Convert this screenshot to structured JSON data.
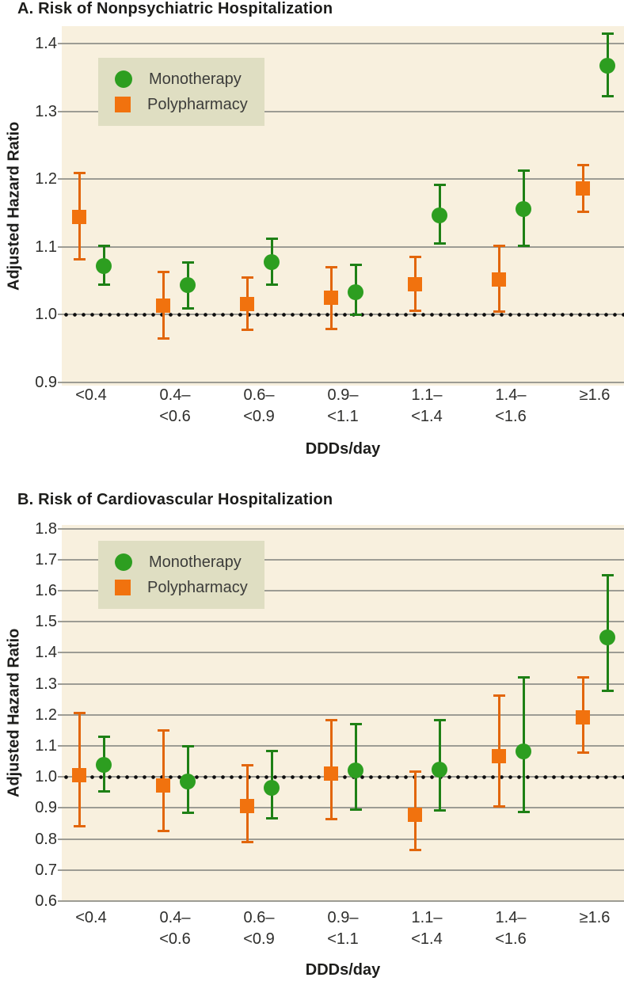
{
  "colors": {
    "monotherapy": "#2d9e20",
    "monotherapy_line": "#1e8015",
    "polypharmacy": "#f1720e",
    "polypharmacy_line": "#e2660b",
    "plot_background": "#f8f0de",
    "legend_background": "#dfdec2",
    "gridline": "#9d9c94",
    "reference_dots": "#0e0e0e",
    "title_text": "#1d1d1b",
    "tick_text": "#2e2e2c",
    "legend_text": "#3c3c3a"
  },
  "chart_data": [
    {
      "type": "scatter",
      "panel": "A",
      "title": "A. Risk of Nonpsychiatric Hospitalization",
      "xlabel": "DDDs/day",
      "ylabel": "Adjusted Hazard Ratio",
      "categories": [
        [
          "<0.4"
        ],
        [
          "0.4–",
          "<0.6"
        ],
        [
          "0.6–",
          "<0.9"
        ],
        [
          "0.9–",
          "<1.1"
        ],
        [
          "1.1–",
          "<1.4"
        ],
        [
          "1.4–",
          "<1.6"
        ],
        [
          "≥1.6"
        ]
      ],
      "ylim": [
        0.895,
        1.426
      ],
      "yticks": [
        0.9,
        1.0,
        1.1,
        1.2,
        1.3,
        1.4
      ],
      "reference_line": 1.0,
      "grid": true,
      "legend_position": "upper-left",
      "series": [
        {
          "name": "Monotherapy",
          "marker": "circle",
          "color": "#2d9e20",
          "line_color": "#1e8015",
          "values": [
            1.072,
            1.043,
            1.078,
            1.033,
            1.147,
            1.156,
            1.368
          ],
          "ci_low": [
            1.043,
            1.008,
            1.044,
            0.999,
            1.104,
            1.101,
            1.322
          ],
          "ci_high": [
            1.102,
            1.078,
            1.113,
            1.074,
            1.192,
            1.213,
            1.415
          ]
        },
        {
          "name": "Polypharmacy",
          "marker": "square",
          "color": "#f1720e",
          "line_color": "#e2660b",
          "values": [
            1.144,
            1.013,
            1.015,
            1.025,
            1.045,
            1.052,
            1.186
          ],
          "ci_low": [
            1.081,
            0.964,
            0.977,
            0.978,
            1.005,
            1.004,
            1.151
          ],
          "ci_high": [
            1.21,
            1.064,
            1.055,
            1.07,
            1.086,
            1.102,
            1.221
          ]
        }
      ]
    },
    {
      "type": "scatter",
      "panel": "B",
      "title": "B. Risk of Cardiovascular Hospitalization",
      "xlabel": "DDDs/day",
      "ylabel": "Adjusted Hazard Ratio",
      "categories": [
        [
          "<0.4"
        ],
        [
          "0.4–",
          "<0.6"
        ],
        [
          "0.6–",
          "<0.9"
        ],
        [
          "0.9–",
          "<1.1"
        ],
        [
          "1.1–",
          "<1.4"
        ],
        [
          "1.4–",
          "<1.6"
        ],
        [
          "≥1.6"
        ]
      ],
      "ylim": [
        0.6,
        1.812
      ],
      "yticks": [
        0.6,
        0.7,
        0.8,
        0.9,
        1.0,
        1.1,
        1.2,
        1.3,
        1.4,
        1.5,
        1.6,
        1.7,
        1.8
      ],
      "reference_line": 1.0,
      "grid": true,
      "legend_position": "upper-left",
      "series": [
        {
          "name": "Monotherapy",
          "marker": "circle",
          "color": "#2d9e20",
          "line_color": "#1e8015",
          "values": [
            1.038,
            0.985,
            0.965,
            1.022,
            1.023,
            1.082,
            1.449
          ],
          "ci_low": [
            0.953,
            0.883,
            0.865,
            0.893,
            0.892,
            0.887,
            1.275
          ],
          "ci_high": [
            1.13,
            1.1,
            1.086,
            1.172,
            1.184,
            1.321,
            1.65
          ]
        },
        {
          "name": "Polypharmacy",
          "marker": "square",
          "color": "#f1720e",
          "line_color": "#e2660b",
          "values": [
            1.005,
            0.972,
            0.905,
            1.01,
            0.877,
            1.067,
            1.193
          ],
          "ci_low": [
            0.84,
            0.825,
            0.79,
            0.864,
            0.764,
            0.903,
            1.076
          ],
          "ci_high": [
            1.207,
            1.15,
            1.04,
            1.185,
            1.018,
            1.264,
            1.322
          ]
        }
      ]
    }
  ]
}
